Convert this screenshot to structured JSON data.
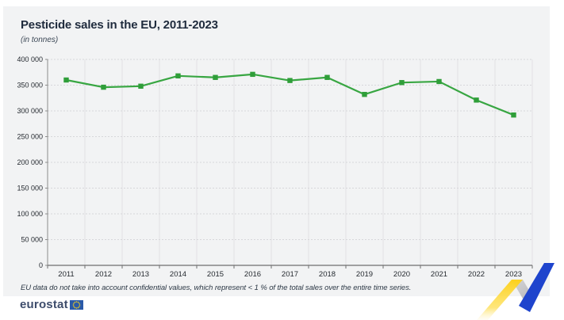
{
  "header": {
    "title": "Pesticide sales in the EU, 2011-2023",
    "subtitle": "(in tonnes)"
  },
  "footnote": "EU data do not take into account confidential values, which represent < 1 % of the total sales over the entire time series.",
  "logo": {
    "text": "eurostat"
  },
  "colors": {
    "panel_bg": "#f2f3f4",
    "title_text": "#1f2b3d",
    "line_green": "#38a642",
    "marker_green": "#2f9e39",
    "grid_vertical": "#e2e2e4",
    "grid_horizontal": "#d7d7da",
    "x_axis_line": "#6f6f6f",
    "y_axis_line": "#8c8c8c",
    "tick_label": "#24292f",
    "logo_text": "#3d4c6b",
    "eu_flag_blue": "#2a5aa8",
    "eu_star_yellow": "#ffd617",
    "decoration_yellow": "#fdd11d",
    "decoration_gray": "#c9c9cb",
    "decoration_blue": "#1e44cd"
  },
  "chart_data": {
    "type": "line",
    "title": "Pesticide sales in the EU, 2011-2023",
    "ylabel": "(in tonnes)",
    "categories": [
      "2011",
      "2012",
      "2013",
      "2014",
      "2015",
      "2016",
      "2017",
      "2018",
      "2019",
      "2020",
      "2021",
      "2022",
      "2023"
    ],
    "series": [
      {
        "name": "Pesticide sales (tonnes)",
        "values": [
          360000,
          346000,
          348000,
          368000,
          365000,
          371000,
          359000,
          365000,
          332000,
          355000,
          357000,
          321000,
          292000
        ]
      }
    ],
    "ylim": [
      0,
      400000
    ],
    "y_tick_step": 50000,
    "y_tick_labels": [
      "0",
      "50 000",
      "100 000",
      "150 000",
      "200 000",
      "250 000",
      "300 000",
      "350 000",
      "400 000"
    ],
    "grid": "horizontal dashed, vertical solid between year cells",
    "legend": "none",
    "marker": "square"
  }
}
